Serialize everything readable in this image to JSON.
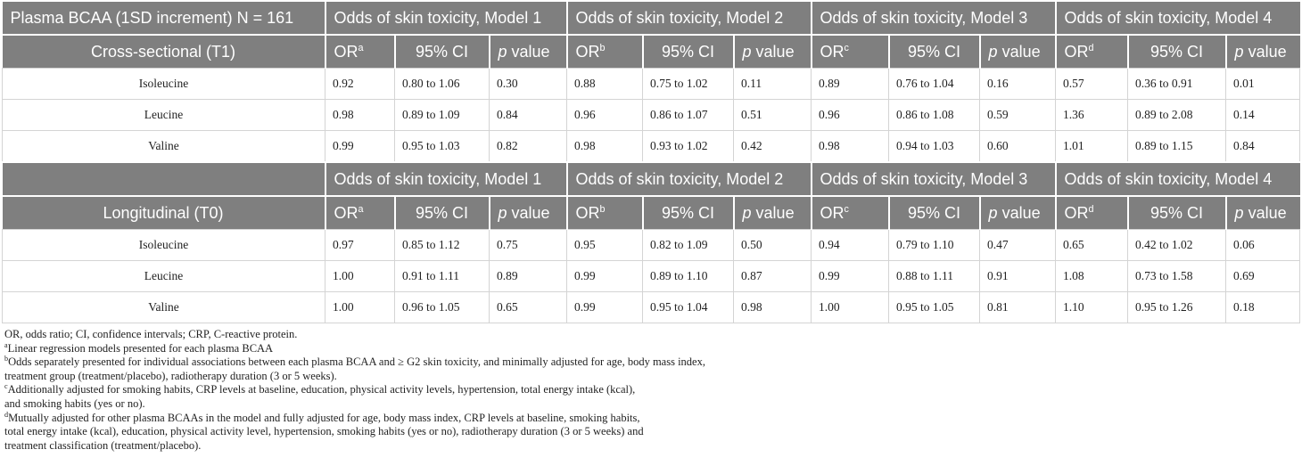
{
  "table": {
    "sections": [
      {
        "top": {
          "label": "Plasma BCAA (1SD increment) N = 161",
          "models": [
            "Odds of skin toxicity, Model 1",
            "Odds of skin toxicity, Model 2",
            "Odds of skin toxicity, Model 3",
            "Odds of skin toxicity, Model 4"
          ]
        },
        "sub": {
          "label": "Cross-sectional (T1)",
          "cols": [
            {
              "text": "OR",
              "sup": "a"
            },
            {
              "text": "95% CI"
            },
            {
              "italic": "p",
              "text": "value"
            },
            {
              "text": "OR",
              "sup": "b"
            },
            {
              "text": "95% CI"
            },
            {
              "italic": "p",
              "text": "value"
            },
            {
              "text": "OR",
              "sup": "c"
            },
            {
              "text": "95% CI"
            },
            {
              "italic": "p",
              "text": "value"
            },
            {
              "text": "OR",
              "sup": "d"
            },
            {
              "text": "95% CI"
            },
            {
              "italic": "p",
              "text": "value"
            }
          ]
        },
        "rows": [
          {
            "label": "Isoleucine",
            "cells": [
              "0.92",
              "0.80 to 1.06",
              "0.30",
              "0.88",
              "0.75 to 1.02",
              "0.11",
              "0.89",
              "0.76 to 1.04",
              "0.16",
              "0.57",
              "0.36 to 0.91",
              "0.01"
            ]
          },
          {
            "label": "Leucine",
            "cells": [
              "0.98",
              "0.89 to 1.09",
              "0.84",
              "0.96",
              "0.86 to 1.07",
              "0.51",
              "0.96",
              "0.86 to 1.08",
              "0.59",
              "1.36",
              "0.89 to 2.08",
              "0.14"
            ]
          },
          {
            "label": "Valine",
            "cells": [
              "0.99",
              "0.95 to 1.03",
              "0.82",
              "0.98",
              "0.93 to 1.02",
              "0.42",
              "0.98",
              "0.94 to 1.03",
              "0.60",
              "1.01",
              "0.89 to 1.15",
              "0.84"
            ]
          }
        ]
      },
      {
        "top": {
          "models": [
            "Odds of skin toxicity, Model 1",
            "Odds of skin toxicity, Model 2",
            "Odds of skin toxicity, Model 3",
            "Odds of skin toxicity, Model 4"
          ]
        },
        "sub": {
          "label": "Longitudinal (T0)",
          "cols": [
            {
              "text": "OR",
              "sup": "a"
            },
            {
              "text": "95% CI"
            },
            {
              "italic": "p",
              "text": "value"
            },
            {
              "text": "OR",
              "sup": "b"
            },
            {
              "text": "95% CI"
            },
            {
              "italic": "p",
              "text": "value"
            },
            {
              "text": "OR",
              "sup": "c"
            },
            {
              "text": "95% CI"
            },
            {
              "italic": "p",
              "text": "value"
            },
            {
              "text": "OR",
              "sup": "d"
            },
            {
              "text": "95% CI"
            },
            {
              "italic": "p",
              "text": "value"
            }
          ]
        },
        "rows": [
          {
            "label": "Isoleucine",
            "cells": [
              "0.97",
              "0.85 to 1.12",
              "0.75",
              "0.95",
              "0.82 to 1.09",
              "0.50",
              "0.94",
              "0.79 to 1.10",
              "0.47",
              "0.65",
              "0.42 to 1.02",
              "0.06"
            ]
          },
          {
            "label": "Leucine",
            "cells": [
              "1.00",
              "0.91 to 1.11",
              "0.89",
              "0.99",
              "0.89 to 1.10",
              "0.87",
              "0.99",
              "0.88 to 1.11",
              "0.91",
              "1.08",
              "0.73 to 1.58",
              "0.69"
            ]
          },
          {
            "label": "Valine",
            "cells": [
              "1.00",
              "0.96 to 1.05",
              "0.65",
              "0.99",
              "0.95 to 1.04",
              "0.98",
              "1.00",
              "0.95 to 1.05",
              "0.81",
              "1.10",
              "0.95 to 1.26",
              "0.18"
            ]
          }
        ]
      }
    ]
  },
  "notes": [
    {
      "lines": [
        "OR, odds ratio; CI, confidence intervals; CRP, C-reactive protein."
      ]
    },
    {
      "sup": "a",
      "lines": [
        "Linear regression models presented for each plasma BCAA"
      ]
    },
    {
      "sup": "b",
      "lines": [
        "Odds separately presented for individual associations between each plasma BCAA and ≥ G2 skin toxicity, and minimally adjusted for age, body mass index,",
        "treatment group (treatment/placebo), radiotherapy duration (3 or 5 weeks)."
      ]
    },
    {
      "sup": "c",
      "lines": [
        "Additionally adjusted for smoking habits, CRP levels at baseline, education, physical activity levels, hypertension, total energy intake (kcal),",
        "and smoking habits (yes or no)."
      ]
    },
    {
      "sup": "d",
      "lines": [
        "Mutually adjusted for other plasma BCAAs in the model and fully adjusted for age, body mass index, CRP levels at baseline, smoking habits,",
        "total energy intake (kcal), education, physical activity level, hypertension, smoking habits (yes or no), radiotherapy duration (3 or 5 weeks) and",
        "treatment classification (treatment/placebo)."
      ]
    }
  ]
}
